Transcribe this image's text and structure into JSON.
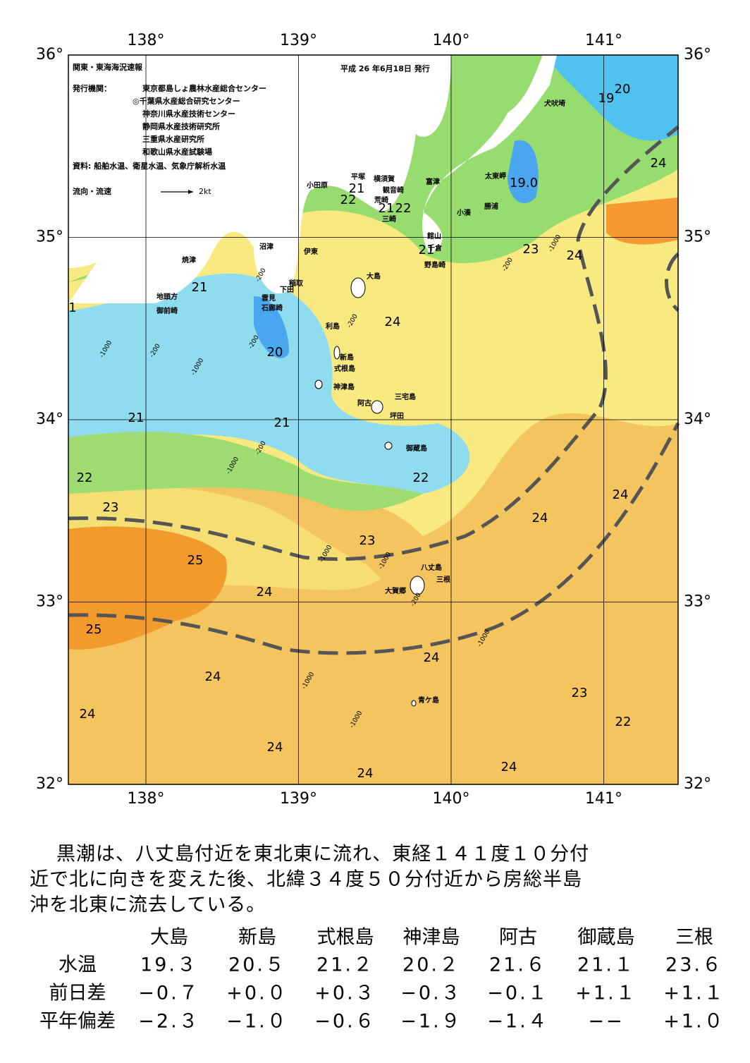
{
  "header": {
    "title": "関東・東海海況速報",
    "date": "平成 26 年6月18日 発行",
    "issuer_label": "発行機関：",
    "issuers": [
      "東京都島しょ農林水産総合センター",
      "◎千葉県水産総合研究センター",
      "神奈川県水産技術センター",
      "静岡県水産技術研究所",
      "三重県水産研究所",
      "和歌山県水産試験場"
    ],
    "source": "資料: 船舶水温、衛星水温、気象庁解析水温",
    "legend": "流向・流速",
    "legend_scale": "2kt"
  },
  "map": {
    "lon_ticks": [
      {
        "value": 138,
        "label": "138°"
      },
      {
        "value": 139,
        "label": "139°"
      },
      {
        "value": 140,
        "label": "140°"
      },
      {
        "value": 141,
        "label": "141°"
      }
    ],
    "lat_ticks": [
      {
        "value": 36,
        "label": "36°"
      },
      {
        "value": 35,
        "label": "35°"
      },
      {
        "value": 34,
        "label": "34°"
      },
      {
        "value": 33,
        "label": "33°"
      },
      {
        "value": 32,
        "label": "32°"
      }
    ],
    "contour_labels": [
      "21",
      "1",
      "20",
      "21",
      "21",
      "22",
      "23",
      "25",
      "24",
      "25",
      "24",
      "24",
      "24",
      "24",
      "24",
      "23",
      "22",
      "24",
      "24",
      "24",
      "24",
      "23",
      "22",
      "23",
      "24",
      "24",
      "19",
      "20",
      "19.0",
      "21",
      "22",
      "21",
      "22",
      "21"
    ],
    "places": [
      "犬吠埼",
      "太東岬",
      "勝浦",
      "小湊",
      "富津",
      "横須賀",
      "観音崎",
      "荒崎",
      "三崎",
      "平塚",
      "小田原",
      "館山",
      "千倉",
      "野島崎",
      "沼津",
      "伊東",
      "焼津",
      "稲取",
      "下田",
      "雲見",
      "石廊崎",
      "地頭方",
      "御前崎",
      "大島",
      "利島",
      "新島",
      "式根島",
      "神津島",
      "三宅島",
      "阿古",
      "坪田",
      "御蔵島",
      "八丈島",
      "三根",
      "大賀郷",
      "青ケ島"
    ],
    "depth_labels": [
      "-1000",
      "-200",
      "-1000",
      "-200",
      "-200",
      "-200",
      "-1000",
      "-200",
      "-1000",
      "-1000",
      "-1000",
      "-200",
      "-1000",
      "-1000",
      "-1000",
      "-200"
    ]
  },
  "summary": [
    "黒潮は、八丈島付近を東北東に流れ、東経１４１度１０分付",
    "近で北に向きを変えた後、北緯３４度５０分付近から房総半島",
    "沖を北東に流去している。"
  ],
  "table": {
    "columns": [
      "大島",
      "新島",
      "式根島",
      "神津島",
      "阿古",
      "御蔵島",
      "三根"
    ],
    "rows": [
      {
        "label": "水温",
        "cells": [
          "19.３",
          "20.５",
          "21.２",
          "20.２",
          "21.６",
          "21.１",
          "23.６"
        ]
      },
      {
        "label": "前日差",
        "cells": [
          "−0.７",
          "+0.０",
          "+0.３",
          "−0.３",
          "−0.１",
          "+1.１",
          "+1.１"
        ]
      },
      {
        "label": "平年偏差",
        "cells": [
          "−2.３",
          "−1.０",
          "−0.６",
          "−1.９",
          "−1.４",
          "−−",
          "+1.０"
        ]
      }
    ]
  }
}
